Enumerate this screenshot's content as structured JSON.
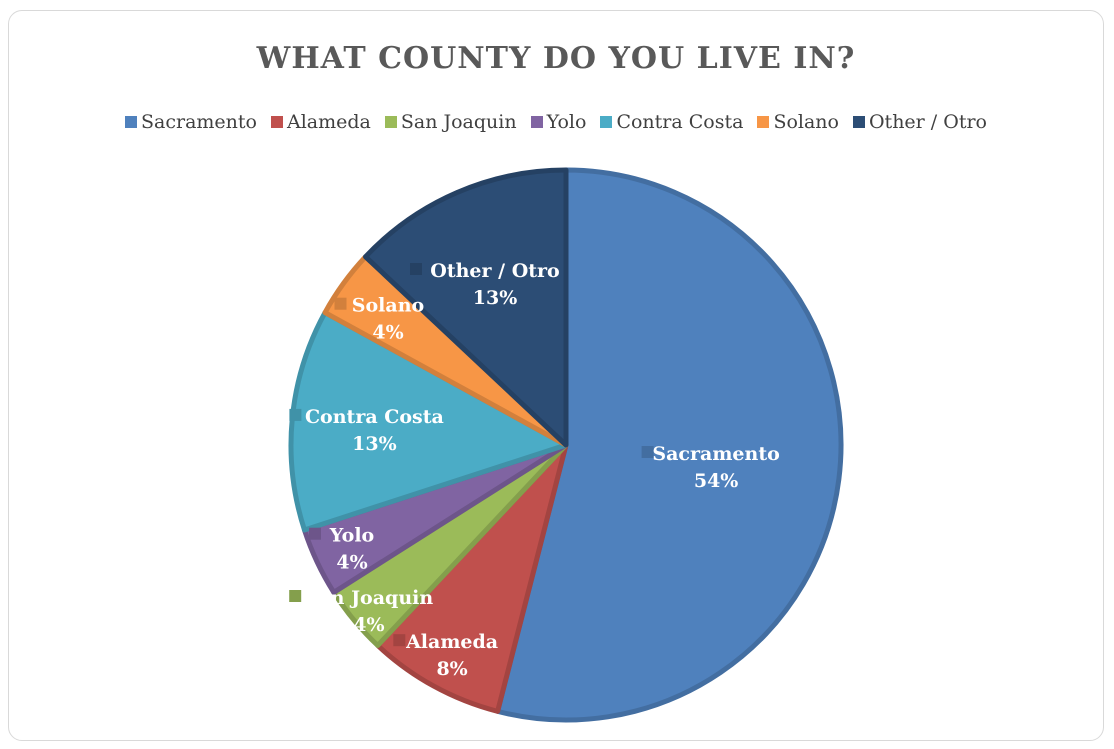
{
  "chart_data": {
    "type": "pie",
    "title": "WHAT COUNTY DO YOU LIVE IN?",
    "categories": [
      "Sacramento",
      "Alameda",
      "San Joaquin",
      "Yolo",
      "Contra Costa",
      "Solano",
      "Other / Otro"
    ],
    "values": [
      54,
      8,
      4,
      4,
      13,
      4,
      13
    ],
    "value_labels": [
      "54%",
      "8%",
      "4%",
      "4%",
      "13%",
      "4%",
      "13%"
    ],
    "colors": [
      "#4f81bd",
      "#c0504d",
      "#9bbb59",
      "#8064a2",
      "#4bacc6",
      "#f79646",
      "#2c4d75"
    ],
    "legend_position": "top"
  }
}
